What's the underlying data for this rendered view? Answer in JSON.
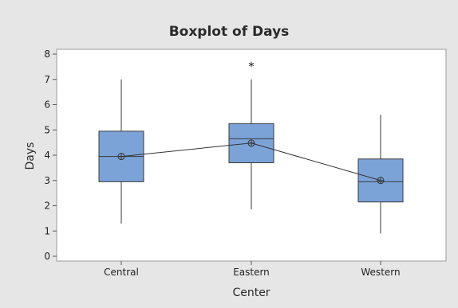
{
  "chart_data": {
    "type": "boxplot",
    "title": "Boxplot of Days",
    "xlabel": "Center",
    "ylabel": "Days",
    "ylim": [
      0,
      8
    ],
    "yticks": [
      0,
      1,
      2,
      3,
      4,
      5,
      6,
      7,
      8
    ],
    "categories": [
      "Central",
      "Eastern",
      "Western"
    ],
    "boxes": [
      {
        "category": "Central",
        "min": 1.3,
        "q1": 2.95,
        "median": 3.95,
        "q3": 4.95,
        "max": 7.0,
        "mean": 3.95,
        "outliers": []
      },
      {
        "category": "Eastern",
        "min": 1.85,
        "q1": 3.7,
        "median": 4.65,
        "q3": 5.25,
        "max": 7.0,
        "mean": 4.48,
        "outliers": [
          7.6
        ]
      },
      {
        "category": "Western",
        "min": 0.9,
        "q1": 2.15,
        "median": 2.95,
        "q3": 3.85,
        "max": 5.6,
        "mean": 3.0,
        "outliers": []
      }
    ],
    "mean_connect_line": true,
    "outlier_marker": "*",
    "colors": {
      "box_fill": "#7ba3d8",
      "box_stroke": "#3a3a3a",
      "figure_background": "#e6e6e6",
      "plot_background": "#ffffff"
    },
    "grid": false,
    "legend": "none"
  }
}
